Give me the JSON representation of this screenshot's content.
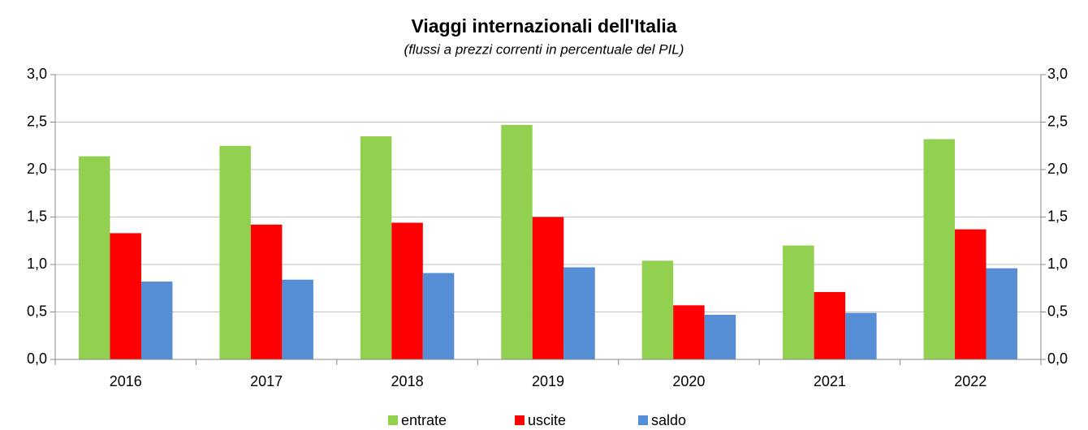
{
  "chart_data": {
    "type": "bar",
    "title": "Viaggi internazionali dell'Italia",
    "subtitle": "(flussi a prezzi correnti in percentuale del PIL)",
    "categories": [
      "2016",
      "2017",
      "2018",
      "2019",
      "2020",
      "2021",
      "2022"
    ],
    "series": [
      {
        "name": "entrate",
        "color": "#92d050",
        "values": [
          2.14,
          2.25,
          2.35,
          2.47,
          1.04,
          1.2,
          2.32
        ]
      },
      {
        "name": "uscite",
        "color": "#ff0000",
        "values": [
          1.33,
          1.42,
          1.44,
          1.5,
          0.57,
          0.71,
          1.37
        ]
      },
      {
        "name": "saldo",
        "color": "#558ed5",
        "values": [
          0.82,
          0.84,
          0.91,
          0.97,
          0.47,
          0.49,
          0.96
        ]
      }
    ],
    "ylim": [
      0,
      3
    ],
    "yticks": [
      {
        "value": 0,
        "label": "0,0"
      },
      {
        "value": 0.5,
        "label": "0,5"
      },
      {
        "value": 1,
        "label": "1,0"
      },
      {
        "value": 1.5,
        "label": "1,5"
      },
      {
        "value": 2,
        "label": "2,0"
      },
      {
        "value": 2.5,
        "label": "2,5"
      },
      {
        "value": 3,
        "label": "3,0"
      }
    ],
    "y2lim": [
      0,
      3
    ],
    "y2ticks": [
      {
        "value": 0,
        "label": "0,0"
      },
      {
        "value": 0.5,
        "label": "0,5"
      },
      {
        "value": 1,
        "label": "1,0"
      },
      {
        "value": 1.5,
        "label": "1,5"
      },
      {
        "value": 2,
        "label": "2,0"
      },
      {
        "value": 2.5,
        "label": "2,5"
      },
      {
        "value": 3,
        "label": "3,0"
      }
    ],
    "grid": true,
    "legend": "bottom"
  }
}
